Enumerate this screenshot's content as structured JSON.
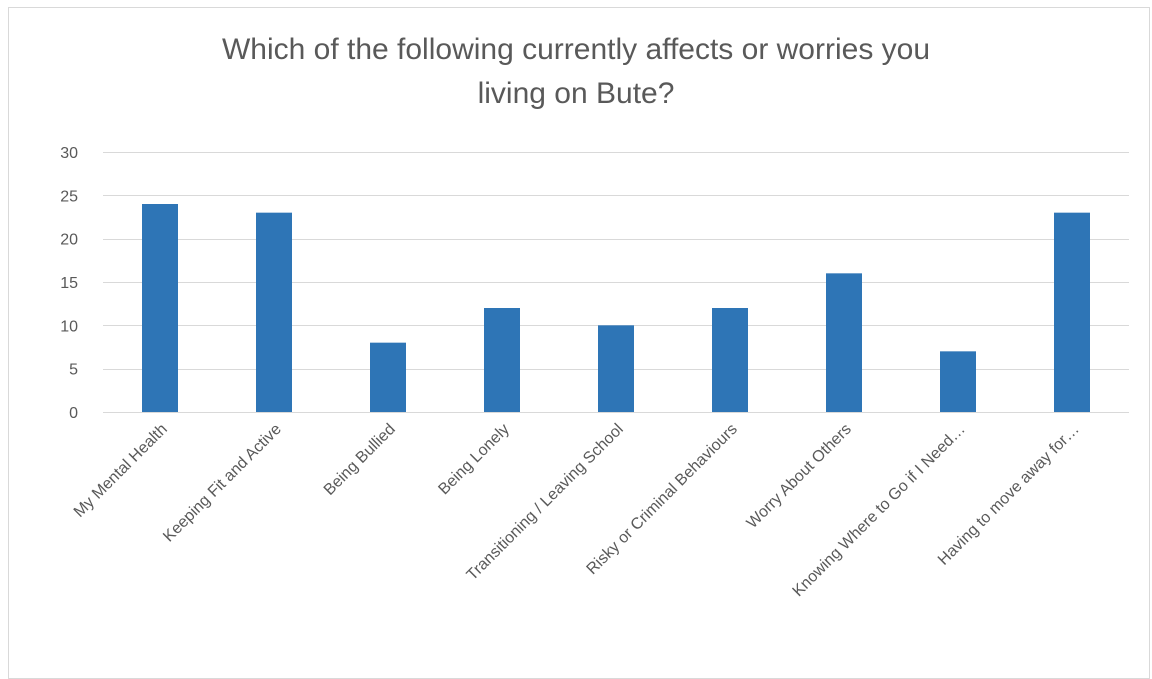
{
  "chart_data": {
    "type": "bar",
    "title": "Which of the following currently affects or worries you\nliving on Bute?",
    "xlabel": "",
    "ylabel": "",
    "categories": [
      "My Mental Health",
      "Keeping Fit and Active",
      "Being Bullied",
      "Being Lonely",
      "Transitioning / Leaving School",
      "Risky or Criminal Behaviours",
      "Worry About Others",
      "Knowing Where to Go if I Need…",
      "Having to move away for…"
    ],
    "values": [
      24,
      23,
      8,
      12,
      10,
      12,
      16,
      7,
      23
    ],
    "ylim": [
      0,
      30
    ],
    "yticks": [
      0,
      5,
      10,
      15,
      20,
      25,
      30
    ],
    "grid": true,
    "legend": "none",
    "colors": {
      "bar": "#2e75b6",
      "grid": "#d9d9d9",
      "text": "#595959"
    }
  }
}
